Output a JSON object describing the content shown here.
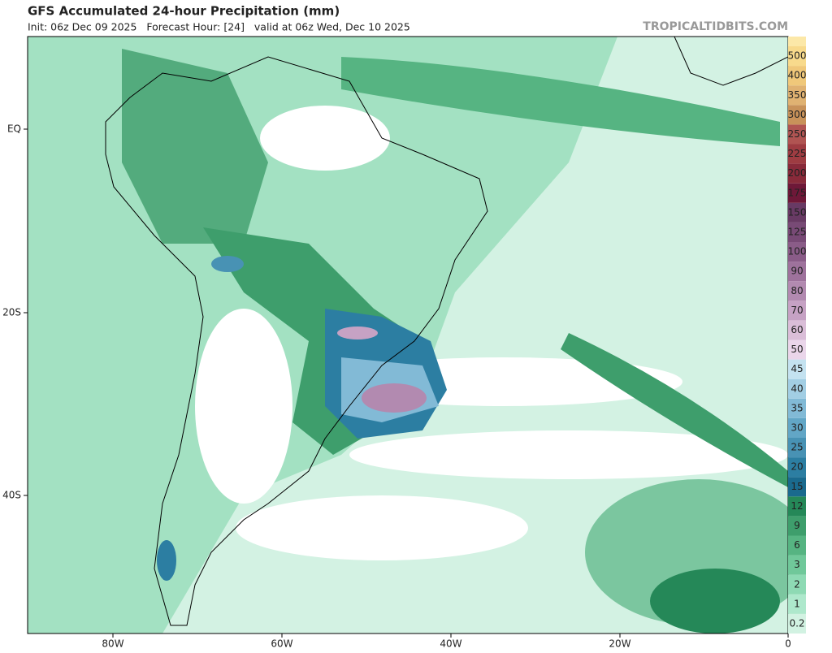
{
  "header": {
    "title": "GFS Accumulated 24-hour Precipitation (mm)",
    "subtitle": "Init: 06z Dec 09 2025   Forecast Hour: [24]   valid at 06z Wed, Dec 10 2025",
    "site": "TROPICALTIDBITS.COM"
  },
  "axes": {
    "x_labels": [
      "80W",
      "60W",
      "40W",
      "20W",
      "0"
    ],
    "y_labels": [
      "EQ",
      "20S",
      "40S"
    ]
  },
  "legend": {
    "levels": [
      {
        "label": "0.2",
        "color": "#d2f2e2"
      },
      {
        "label": "1",
        "color": "#aee8cc"
      },
      {
        "label": "2",
        "color": "#8edab4"
      },
      {
        "label": "3",
        "color": "#70c89a"
      },
      {
        "label": "6",
        "color": "#56b482"
      },
      {
        "label": "9",
        "color": "#3e9e6c"
      },
      {
        "label": "12",
        "color": "#258858"
      },
      {
        "label": "15",
        "color": "#1a6a8e"
      },
      {
        "label": "20",
        "color": "#2c7ea2"
      },
      {
        "label": "25",
        "color": "#4892b4"
      },
      {
        "label": "30",
        "color": "#62a6c6"
      },
      {
        "label": "35",
        "color": "#82bad6"
      },
      {
        "label": "40",
        "color": "#a2cee4"
      },
      {
        "label": "45",
        "color": "#c4e2f0"
      },
      {
        "label": "50",
        "color": "#ead6ea"
      },
      {
        "label": "60",
        "color": "#dabed8"
      },
      {
        "label": "70",
        "color": "#c6a2c4"
      },
      {
        "label": "80",
        "color": "#b28ab0"
      },
      {
        "label": "90",
        "color": "#9e729c"
      },
      {
        "label": "100",
        "color": "#8a5c88"
      },
      {
        "label": "125",
        "color": "#784a76"
      },
      {
        "label": "150",
        "color": "#683a64"
      },
      {
        "label": "175",
        "color": "#6e1838"
      },
      {
        "label": "200",
        "color": "#882a3a"
      },
      {
        "label": "225",
        "color": "#9e3c42"
      },
      {
        "label": "250",
        "color": "#b05452"
      },
      {
        "label": "300",
        "color": "#c8925a"
      },
      {
        "label": "350",
        "color": "#e0b272"
      },
      {
        "label": "400",
        "color": "#f0c87a"
      },
      {
        "label": "500",
        "color": "#f8da8c"
      }
    ]
  }
}
